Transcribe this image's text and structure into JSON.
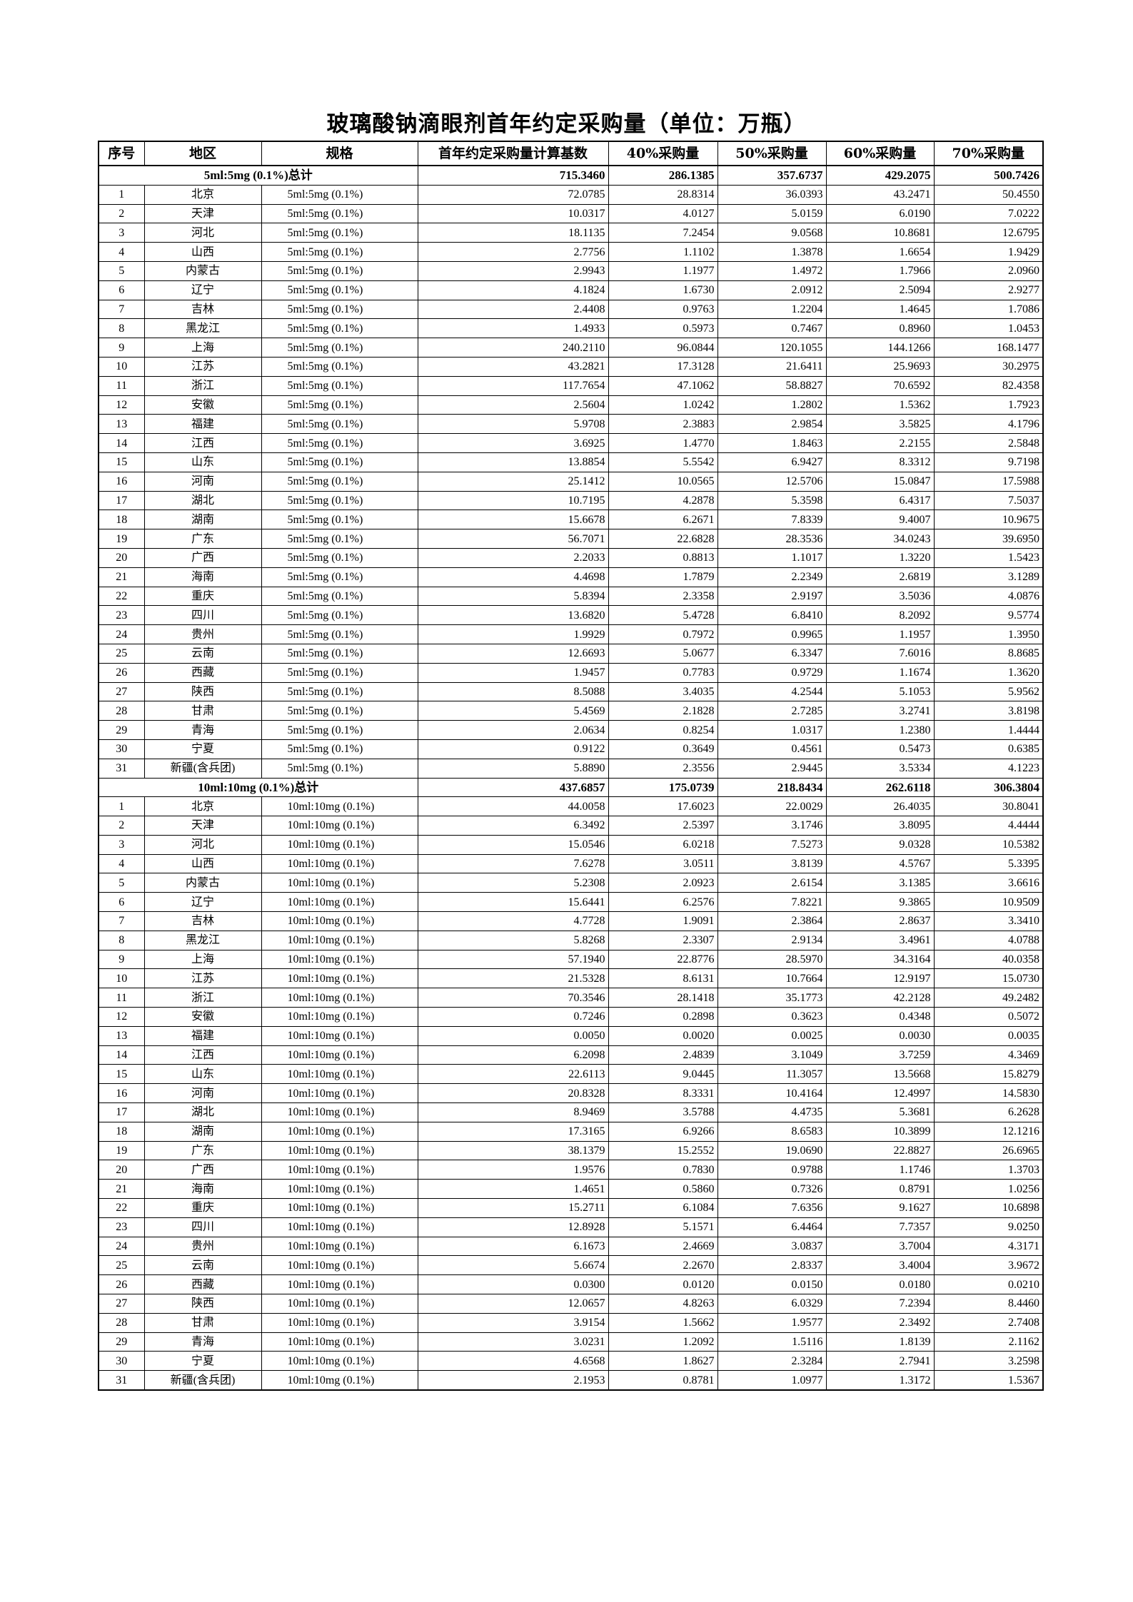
{
  "title": "玻璃酸钠滴眼剂首年约定采购量（单位：万瓶）",
  "headers": [
    "序号",
    "地区",
    "规格",
    "首年约定采购量计算基数",
    "40%采购量",
    "50%采购量",
    "60%采购量",
    "70%采购量"
  ],
  "sections": [
    {
      "total_label": "5ml:5mg (0.1%)总计",
      "totals": [
        "715.3460",
        "286.1385",
        "357.6737",
        "429.2075",
        "500.7426"
      ],
      "rows": [
        [
          "1",
          "北京",
          "5ml:5mg (0.1%)",
          "72.0785",
          "28.8314",
          "36.0393",
          "43.2471",
          "50.4550"
        ],
        [
          "2",
          "天津",
          "5ml:5mg (0.1%)",
          "10.0317",
          "4.0127",
          "5.0159",
          "6.0190",
          "7.0222"
        ],
        [
          "3",
          "河北",
          "5ml:5mg (0.1%)",
          "18.1135",
          "7.2454",
          "9.0568",
          "10.8681",
          "12.6795"
        ],
        [
          "4",
          "山西",
          "5ml:5mg (0.1%)",
          "2.7756",
          "1.1102",
          "1.3878",
          "1.6654",
          "1.9429"
        ],
        [
          "5",
          "内蒙古",
          "5ml:5mg (0.1%)",
          "2.9943",
          "1.1977",
          "1.4972",
          "1.7966",
          "2.0960"
        ],
        [
          "6",
          "辽宁",
          "5ml:5mg (0.1%)",
          "4.1824",
          "1.6730",
          "2.0912",
          "2.5094",
          "2.9277"
        ],
        [
          "7",
          "吉林",
          "5ml:5mg (0.1%)",
          "2.4408",
          "0.9763",
          "1.2204",
          "1.4645",
          "1.7086"
        ],
        [
          "8",
          "黑龙江",
          "5ml:5mg (0.1%)",
          "1.4933",
          "0.5973",
          "0.7467",
          "0.8960",
          "1.0453"
        ],
        [
          "9",
          "上海",
          "5ml:5mg (0.1%)",
          "240.2110",
          "96.0844",
          "120.1055",
          "144.1266",
          "168.1477"
        ],
        [
          "10",
          "江苏",
          "5ml:5mg (0.1%)",
          "43.2821",
          "17.3128",
          "21.6411",
          "25.9693",
          "30.2975"
        ],
        [
          "11",
          "浙江",
          "5ml:5mg (0.1%)",
          "117.7654",
          "47.1062",
          "58.8827",
          "70.6592",
          "82.4358"
        ],
        [
          "12",
          "安徽",
          "5ml:5mg (0.1%)",
          "2.5604",
          "1.0242",
          "1.2802",
          "1.5362",
          "1.7923"
        ],
        [
          "13",
          "福建",
          "5ml:5mg (0.1%)",
          "5.9708",
          "2.3883",
          "2.9854",
          "3.5825",
          "4.1796"
        ],
        [
          "14",
          "江西",
          "5ml:5mg (0.1%)",
          "3.6925",
          "1.4770",
          "1.8463",
          "2.2155",
          "2.5848"
        ],
        [
          "15",
          "山东",
          "5ml:5mg (0.1%)",
          "13.8854",
          "5.5542",
          "6.9427",
          "8.3312",
          "9.7198"
        ],
        [
          "16",
          "河南",
          "5ml:5mg (0.1%)",
          "25.1412",
          "10.0565",
          "12.5706",
          "15.0847",
          "17.5988"
        ],
        [
          "17",
          "湖北",
          "5ml:5mg (0.1%)",
          "10.7195",
          "4.2878",
          "5.3598",
          "6.4317",
          "7.5037"
        ],
        [
          "18",
          "湖南",
          "5ml:5mg (0.1%)",
          "15.6678",
          "6.2671",
          "7.8339",
          "9.4007",
          "10.9675"
        ],
        [
          "19",
          "广东",
          "5ml:5mg (0.1%)",
          "56.7071",
          "22.6828",
          "28.3536",
          "34.0243",
          "39.6950"
        ],
        [
          "20",
          "广西",
          "5ml:5mg (0.1%)",
          "2.2033",
          "0.8813",
          "1.1017",
          "1.3220",
          "1.5423"
        ],
        [
          "21",
          "海南",
          "5ml:5mg (0.1%)",
          "4.4698",
          "1.7879",
          "2.2349",
          "2.6819",
          "3.1289"
        ],
        [
          "22",
          "重庆",
          "5ml:5mg (0.1%)",
          "5.8394",
          "2.3358",
          "2.9197",
          "3.5036",
          "4.0876"
        ],
        [
          "23",
          "四川",
          "5ml:5mg (0.1%)",
          "13.6820",
          "5.4728",
          "6.8410",
          "8.2092",
          "9.5774"
        ],
        [
          "24",
          "贵州",
          "5ml:5mg (0.1%)",
          "1.9929",
          "0.7972",
          "0.9965",
          "1.1957",
          "1.3950"
        ],
        [
          "25",
          "云南",
          "5ml:5mg (0.1%)",
          "12.6693",
          "5.0677",
          "6.3347",
          "7.6016",
          "8.8685"
        ],
        [
          "26",
          "西藏",
          "5ml:5mg (0.1%)",
          "1.9457",
          "0.7783",
          "0.9729",
          "1.1674",
          "1.3620"
        ],
        [
          "27",
          "陕西",
          "5ml:5mg (0.1%)",
          "8.5088",
          "3.4035",
          "4.2544",
          "5.1053",
          "5.9562"
        ],
        [
          "28",
          "甘肃",
          "5ml:5mg (0.1%)",
          "5.4569",
          "2.1828",
          "2.7285",
          "3.2741",
          "3.8198"
        ],
        [
          "29",
          "青海",
          "5ml:5mg (0.1%)",
          "2.0634",
          "0.8254",
          "1.0317",
          "1.2380",
          "1.4444"
        ],
        [
          "30",
          "宁夏",
          "5ml:5mg (0.1%)",
          "0.9122",
          "0.3649",
          "0.4561",
          "0.5473",
          "0.6385"
        ],
        [
          "31",
          "新疆(含兵团)",
          "5ml:5mg (0.1%)",
          "5.8890",
          "2.3556",
          "2.9445",
          "3.5334",
          "4.1223"
        ]
      ]
    },
    {
      "total_label": "10ml:10mg (0.1%)总计",
      "totals": [
        "437.6857",
        "175.0739",
        "218.8434",
        "262.6118",
        "306.3804"
      ],
      "rows": [
        [
          "1",
          "北京",
          "10ml:10mg (0.1%)",
          "44.0058",
          "17.6023",
          "22.0029",
          "26.4035",
          "30.8041"
        ],
        [
          "2",
          "天津",
          "10ml:10mg (0.1%)",
          "6.3492",
          "2.5397",
          "3.1746",
          "3.8095",
          "4.4444"
        ],
        [
          "3",
          "河北",
          "10ml:10mg (0.1%)",
          "15.0546",
          "6.0218",
          "7.5273",
          "9.0328",
          "10.5382"
        ],
        [
          "4",
          "山西",
          "10ml:10mg (0.1%)",
          "7.6278",
          "3.0511",
          "3.8139",
          "4.5767",
          "5.3395"
        ],
        [
          "5",
          "内蒙古",
          "10ml:10mg (0.1%)",
          "5.2308",
          "2.0923",
          "2.6154",
          "3.1385",
          "3.6616"
        ],
        [
          "6",
          "辽宁",
          "10ml:10mg (0.1%)",
          "15.6441",
          "6.2576",
          "7.8221",
          "9.3865",
          "10.9509"
        ],
        [
          "7",
          "吉林",
          "10ml:10mg (0.1%)",
          "4.7728",
          "1.9091",
          "2.3864",
          "2.8637",
          "3.3410"
        ],
        [
          "8",
          "黑龙江",
          "10ml:10mg (0.1%)",
          "5.8268",
          "2.3307",
          "2.9134",
          "3.4961",
          "4.0788"
        ],
        [
          "9",
          "上海",
          "10ml:10mg (0.1%)",
          "57.1940",
          "22.8776",
          "28.5970",
          "34.3164",
          "40.0358"
        ],
        [
          "10",
          "江苏",
          "10ml:10mg (0.1%)",
          "21.5328",
          "8.6131",
          "10.7664",
          "12.9197",
          "15.0730"
        ],
        [
          "11",
          "浙江",
          "10ml:10mg (0.1%)",
          "70.3546",
          "28.1418",
          "35.1773",
          "42.2128",
          "49.2482"
        ],
        [
          "12",
          "安徽",
          "10ml:10mg (0.1%)",
          "0.7246",
          "0.2898",
          "0.3623",
          "0.4348",
          "0.5072"
        ],
        [
          "13",
          "福建",
          "10ml:10mg (0.1%)",
          "0.0050",
          "0.0020",
          "0.0025",
          "0.0030",
          "0.0035"
        ],
        [
          "14",
          "江西",
          "10ml:10mg (0.1%)",
          "6.2098",
          "2.4839",
          "3.1049",
          "3.7259",
          "4.3469"
        ],
        [
          "15",
          "山东",
          "10ml:10mg (0.1%)",
          "22.6113",
          "9.0445",
          "11.3057",
          "13.5668",
          "15.8279"
        ],
        [
          "16",
          "河南",
          "10ml:10mg (0.1%)",
          "20.8328",
          "8.3331",
          "10.4164",
          "12.4997",
          "14.5830"
        ],
        [
          "17",
          "湖北",
          "10ml:10mg (0.1%)",
          "8.9469",
          "3.5788",
          "4.4735",
          "5.3681",
          "6.2628"
        ],
        [
          "18",
          "湖南",
          "10ml:10mg (0.1%)",
          "17.3165",
          "6.9266",
          "8.6583",
          "10.3899",
          "12.1216"
        ],
        [
          "19",
          "广东",
          "10ml:10mg (0.1%)",
          "38.1379",
          "15.2552",
          "19.0690",
          "22.8827",
          "26.6965"
        ],
        [
          "20",
          "广西",
          "10ml:10mg (0.1%)",
          "1.9576",
          "0.7830",
          "0.9788",
          "1.1746",
          "1.3703"
        ],
        [
          "21",
          "海南",
          "10ml:10mg (0.1%)",
          "1.4651",
          "0.5860",
          "0.7326",
          "0.8791",
          "1.0256"
        ],
        [
          "22",
          "重庆",
          "10ml:10mg (0.1%)",
          "15.2711",
          "6.1084",
          "7.6356",
          "9.1627",
          "10.6898"
        ],
        [
          "23",
          "四川",
          "10ml:10mg (0.1%)",
          "12.8928",
          "5.1571",
          "6.4464",
          "7.7357",
          "9.0250"
        ],
        [
          "24",
          "贵州",
          "10ml:10mg (0.1%)",
          "6.1673",
          "2.4669",
          "3.0837",
          "3.7004",
          "4.3171"
        ],
        [
          "25",
          "云南",
          "10ml:10mg (0.1%)",
          "5.6674",
          "2.2670",
          "2.8337",
          "3.4004",
          "3.9672"
        ],
        [
          "26",
          "西藏",
          "10ml:10mg (0.1%)",
          "0.0300",
          "0.0120",
          "0.0150",
          "0.0180",
          "0.0210"
        ],
        [
          "27",
          "陕西",
          "10ml:10mg (0.1%)",
          "12.0657",
          "4.8263",
          "6.0329",
          "7.2394",
          "8.4460"
        ],
        [
          "28",
          "甘肃",
          "10ml:10mg (0.1%)",
          "3.9154",
          "1.5662",
          "1.9577",
          "2.3492",
          "2.7408"
        ],
        [
          "29",
          "青海",
          "10ml:10mg (0.1%)",
          "3.0231",
          "1.2092",
          "1.5116",
          "1.8139",
          "2.1162"
        ],
        [
          "30",
          "宁夏",
          "10ml:10mg (0.1%)",
          "4.6568",
          "1.8627",
          "2.3284",
          "2.7941",
          "3.2598"
        ],
        [
          "31",
          "新疆(含兵团)",
          "10ml:10mg (0.1%)",
          "2.1953",
          "0.8781",
          "1.0977",
          "1.3172",
          "1.5367"
        ]
      ]
    }
  ]
}
